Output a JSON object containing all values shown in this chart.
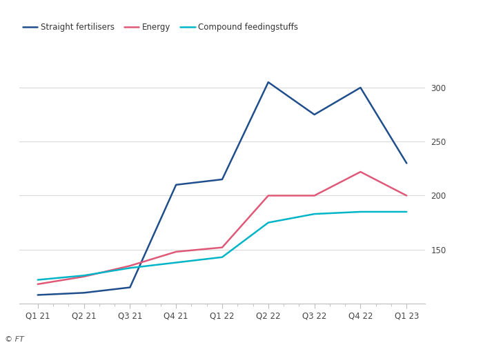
{
  "ylim": [
    100,
    330
  ],
  "yticks": [
    150,
    200,
    250,
    300
  ],
  "x_labels": [
    "Q1 21",
    "Q2 21",
    "Q3 21",
    "Q4 21",
    "Q1 22",
    "Q2 22",
    "Q3 22",
    "Q4 22",
    "Q1 23"
  ],
  "series": {
    "Straight fertilisers": {
      "color": "#1f4e8c",
      "values": [
        108,
        110,
        115,
        210,
        215,
        305,
        275,
        300,
        230
      ]
    },
    "Energy": {
      "color": "#e05878",
      "values": [
        118,
        125,
        135,
        148,
        152,
        200,
        200,
        222,
        200
      ]
    },
    "Compound feedingstuffs": {
      "color": "#00b5c8",
      "values": [
        122,
        126,
        133,
        138,
        143,
        175,
        183,
        185,
        185
      ]
    }
  },
  "legend_order": [
    "Straight fertilisers",
    "Energy",
    "Compound feedingstuffs"
  ],
  "background_color": "#ffffff",
  "grid_color": "#d9d9d9",
  "footer": "© FT"
}
